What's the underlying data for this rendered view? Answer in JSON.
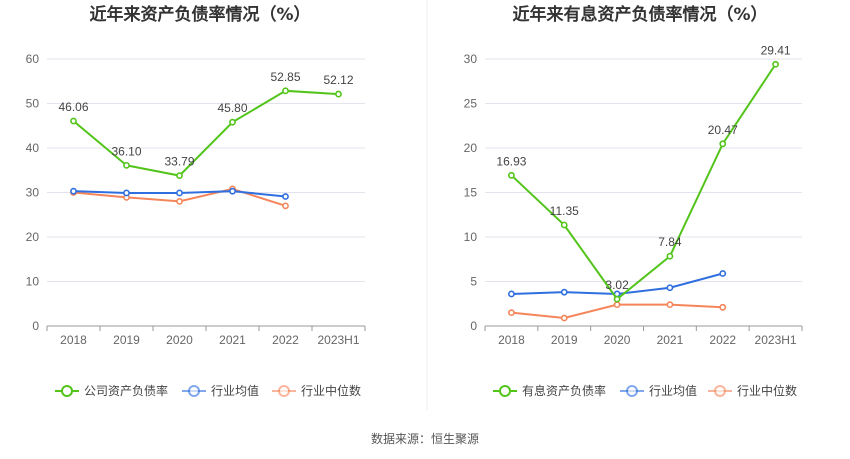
{
  "source": "数据来源：恒生聚源",
  "colors": {
    "company": "#52c41a",
    "avg": "#2f6fe0",
    "median": "#f5855a",
    "grid": "#e3e3ee",
    "axis": "#999"
  },
  "chart_data": [
    {
      "type": "line",
      "title": "近年来资产负债率情况（%）",
      "categories": [
        "2018",
        "2019",
        "2020",
        "2021",
        "2022",
        "2023H1"
      ],
      "ylim": [
        0,
        60
      ],
      "yticks": [
        0,
        10,
        20,
        30,
        40,
        50,
        60
      ],
      "grid": true,
      "legend_position": "bottom",
      "series": [
        {
          "name": "公司资产负债率",
          "key": "company",
          "values": [
            46.06,
            36.1,
            33.79,
            45.8,
            52.85,
            52.12
          ],
          "labels": [
            "46.06",
            "36.10",
            "33.79",
            "45.80",
            "52.85",
            "52.12"
          ]
        },
        {
          "name": "行业均值",
          "key": "avg",
          "values": [
            30.3,
            29.9,
            29.9,
            30.3,
            29.1,
            null
          ]
        },
        {
          "name": "行业中位数",
          "key": "median",
          "values": [
            30.0,
            28.9,
            28.0,
            30.8,
            27.0,
            null
          ]
        }
      ]
    },
    {
      "type": "line",
      "title": "近年来有息资产负债率情况（%）",
      "categories": [
        "2018",
        "2019",
        "2020",
        "2021",
        "2022",
        "2023H1"
      ],
      "ylim": [
        0,
        30
      ],
      "yticks": [
        0,
        5,
        10,
        15,
        20,
        25,
        30
      ],
      "grid": true,
      "legend_position": "bottom",
      "series": [
        {
          "name": "有息资产负债率",
          "key": "company",
          "values": [
            16.93,
            11.35,
            3.02,
            7.84,
            20.47,
            29.41
          ],
          "labels": [
            "16.93",
            "11.35",
            "3.02",
            "7.84",
            "20.47",
            "29.41"
          ]
        },
        {
          "name": "行业均值",
          "key": "avg",
          "values": [
            3.6,
            3.8,
            3.6,
            4.3,
            5.9,
            null
          ]
        },
        {
          "name": "行业中位数",
          "key": "median",
          "values": [
            1.5,
            0.9,
            2.4,
            2.4,
            2.1,
            null
          ]
        }
      ]
    }
  ]
}
